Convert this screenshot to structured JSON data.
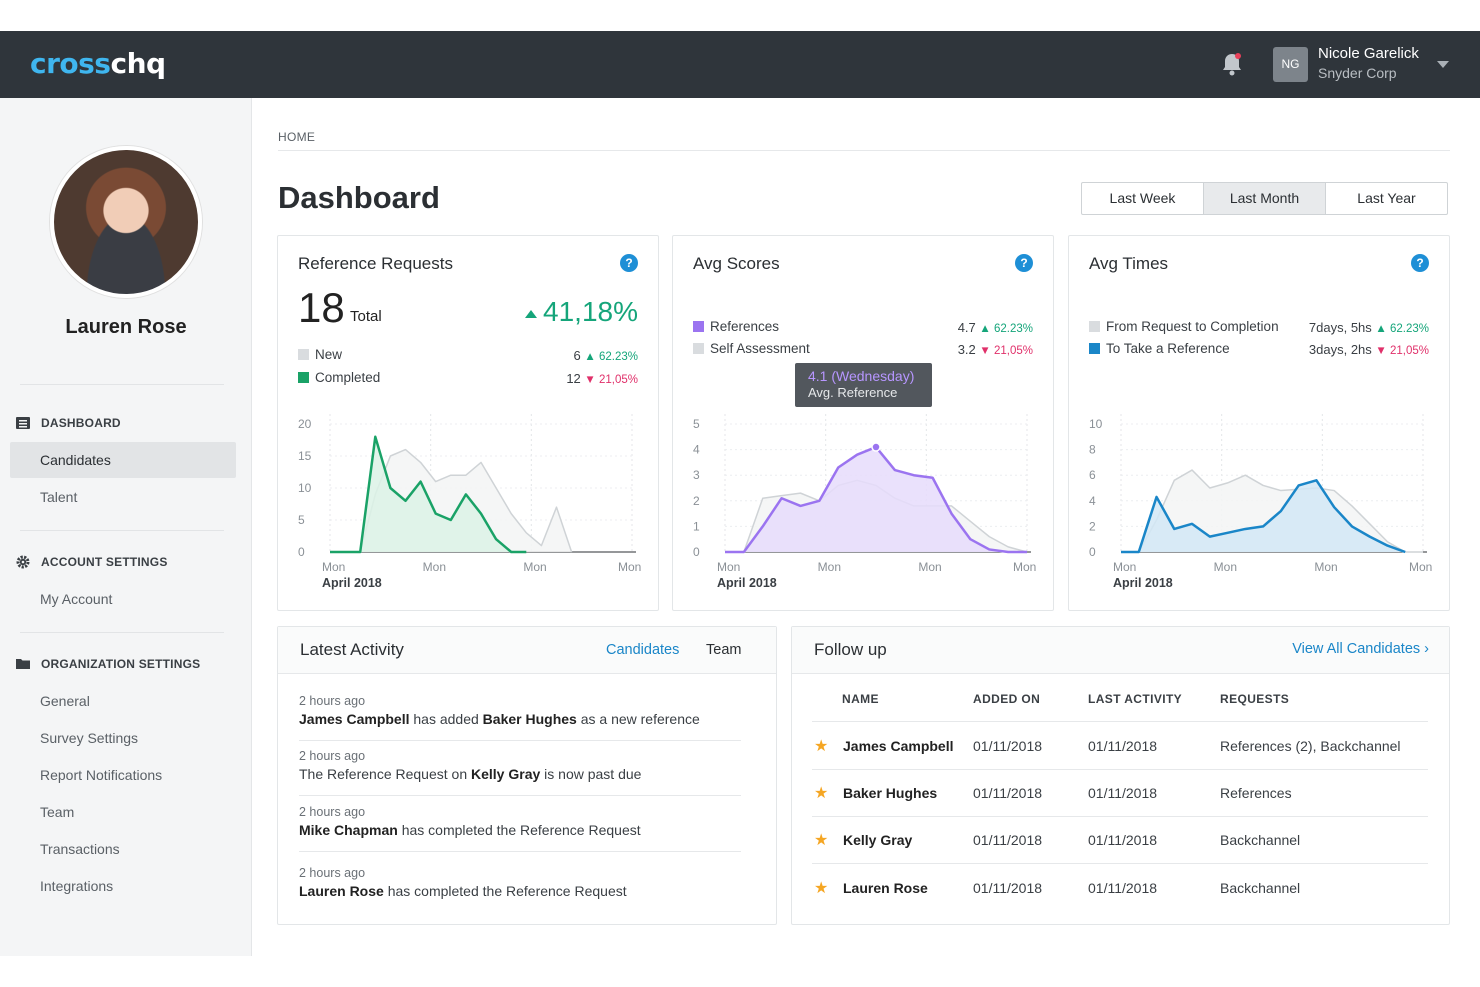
{
  "app": {
    "logo_part1": "cross",
    "logo_part2": "chq"
  },
  "user": {
    "initials": "NG",
    "name": "Nicole Garelick",
    "company": "Snyder Corp"
  },
  "profile": {
    "name": "Lauren Rose"
  },
  "sidebar": {
    "dashboard_header": "DASHBOARD",
    "dashboard_items": [
      "Candidates",
      "Talent"
    ],
    "account_header": "ACCOUNT SETTINGS",
    "account_items": [
      "My Account"
    ],
    "org_header": "ORGANIZATION SETTINGS",
    "org_items": [
      "General",
      "Survey Settings",
      "Report Notifications",
      "Team",
      "Transactions",
      "Integrations"
    ]
  },
  "breadcrumb": "HOME",
  "page_title": "Dashboard",
  "range": {
    "options": [
      "Last Week",
      "Last Month",
      "Last Year"
    ],
    "selected": "Last Month"
  },
  "cards": {
    "reference_requests": {
      "title": "Reference Requests",
      "total": "18",
      "total_label": "Total",
      "change": "41,18%",
      "legend": [
        {
          "label": "New",
          "value": "6",
          "delta": "62.23%",
          "dir": "up",
          "color": "#d9dcdf"
        },
        {
          "label": "Completed",
          "value": "12",
          "delta": "21,05%",
          "dir": "down",
          "color": "#1aa267"
        }
      ]
    },
    "avg_scores": {
      "title": "Avg Scores",
      "legend": [
        {
          "label": "References",
          "value": "4.7",
          "delta": "62.23%",
          "dir": "up",
          "color": "#9b74f0"
        },
        {
          "label": "Self Assessment",
          "value": "3.2",
          "delta": "21,05%",
          "dir": "down",
          "color": "#d9dcdf"
        }
      ],
      "tooltip": {
        "line1": "4.1 (Wednesday)",
        "line2": "Avg. Reference"
      }
    },
    "avg_times": {
      "title": "Avg Times",
      "legend": [
        {
          "label": "From Request to Completion",
          "value": "7days, 5hs",
          "delta": "62.23%",
          "dir": "up",
          "color": "#d9dcdf"
        },
        {
          "label": "To Take a Reference",
          "value": "3days, 2hs",
          "delta": "21,05%",
          "dir": "down",
          "color": "#1a86c8"
        }
      ]
    }
  },
  "chart_data": [
    {
      "type": "area",
      "ylim": [
        0,
        20
      ],
      "yticks": [
        0,
        5,
        10,
        15,
        20
      ],
      "xticks": [
        "Mon",
        "Mon",
        "Mon",
        "Mon"
      ],
      "xsub": "April 2018",
      "x": [
        0,
        1,
        2,
        3,
        4,
        5,
        6,
        7,
        8,
        9,
        10,
        11,
        12,
        13,
        14,
        15,
        16,
        17,
        18,
        19,
        20
      ],
      "series": [
        {
          "name": "New",
          "color": "#cfd3d6",
          "fill": "#f3f4f5",
          "values": [
            0,
            0,
            0,
            9,
            15,
            16,
            14,
            11,
            12,
            12,
            14,
            10,
            6,
            3,
            1,
            7,
            0,
            null,
            null,
            null,
            null
          ]
        },
        {
          "name": "Completed",
          "color": "#1aa267",
          "fill": "#dcf2e6",
          "values": [
            0,
            0,
            0,
            18,
            10,
            8,
            11,
            6,
            5,
            9,
            6,
            2,
            0,
            0,
            null,
            null,
            null,
            null,
            null,
            null,
            null
          ]
        }
      ]
    },
    {
      "type": "area",
      "ylim": [
        0,
        5
      ],
      "yticks": [
        0,
        1,
        2,
        3,
        4,
        5
      ],
      "xticks": [
        "Mon",
        "Mon",
        "Mon",
        "Mon"
      ],
      "xsub": "April 2018",
      "x": [
        0,
        1,
        2,
        3,
        4,
        5,
        6,
        7,
        8,
        9,
        10,
        11,
        12,
        13,
        14,
        15,
        16
      ],
      "series": [
        {
          "name": "Self Assessment",
          "color": "#cfd3d6",
          "fill": "#f3f4f5",
          "values": [
            0,
            0,
            2.1,
            2.2,
            2.3,
            2.0,
            2.6,
            2.8,
            2.6,
            2.1,
            1.8,
            1.8,
            1.8,
            1.2,
            0.6,
            0.2,
            0
          ]
        },
        {
          "name": "References",
          "color": "#9b74f0",
          "fill": "#e6dcfb",
          "values": [
            0,
            0,
            1.0,
            2.1,
            1.8,
            2.0,
            3.3,
            3.8,
            4.1,
            3.2,
            3.0,
            2.9,
            1.5,
            0.5,
            0.1,
            0,
            0
          ]
        }
      ],
      "highlight": {
        "series": "References",
        "index": 8,
        "value": 4.1
      }
    },
    {
      "type": "area",
      "ylim": [
        0,
        10
      ],
      "yticks": [
        0,
        2,
        4,
        6,
        8,
        10
      ],
      "xticks": [
        "Mon",
        "Mon",
        "Mon",
        "Mon"
      ],
      "xsub": "April 2018",
      "x": [
        0,
        1,
        2,
        3,
        4,
        5,
        6,
        7,
        8,
        9,
        10,
        11,
        12,
        13,
        14,
        15,
        16,
        17
      ],
      "series": [
        {
          "name": "From Request to Completion",
          "color": "#cfd3d6",
          "fill": "#f3f4f5",
          "values": [
            0,
            0,
            2.5,
            5.6,
            6.4,
            5.0,
            5.4,
            6.0,
            5.2,
            4.8,
            4.9,
            5.0,
            4.8,
            3.6,
            2.2,
            0.8,
            0,
            0
          ]
        },
        {
          "name": "To Take a Reference",
          "color": "#1a86c8",
          "fill": "#d2e7f6",
          "values": [
            0,
            0,
            4.3,
            1.8,
            2.2,
            1.2,
            1.5,
            1.8,
            2.0,
            3.2,
            5.2,
            5.6,
            3.5,
            2.0,
            1.2,
            0.5,
            0,
            null
          ]
        }
      ]
    }
  ],
  "activity": {
    "title": "Latest Activity",
    "tab_candidates": "Candidates",
    "tab_team": "Team",
    "items": [
      {
        "time": "2 hours ago",
        "actor": "James Campbell",
        "text": " has added ",
        "object": "Baker Hughes",
        "tail": " as a new reference"
      },
      {
        "time": "2 hours ago",
        "actor": "",
        "text": "The Reference Request on ",
        "object": "Kelly Gray",
        "tail": " is now past due"
      },
      {
        "time": "2 hours ago",
        "actor": "Mike Chapman",
        "text": " has completed the Reference Request",
        "object": "",
        "tail": ""
      },
      {
        "time": "2 hours ago",
        "actor": "Lauren Rose",
        "text": " has completed the Reference Request",
        "object": "",
        "tail": ""
      }
    ]
  },
  "followup": {
    "title": "Follow up",
    "view_all": "View All Candidates ›",
    "columns": [
      "NAME",
      "ADDED ON",
      "LAST ACTIVITY",
      "REQUESTS"
    ],
    "rows": [
      {
        "name": "James Campbell",
        "added": "01/11/2018",
        "last": "01/11/2018",
        "requests": "References (2), Backchannel"
      },
      {
        "name": "Baker Hughes",
        "added": "01/11/2018",
        "last": "01/11/2018",
        "requests": "References"
      },
      {
        "name": "Kelly Gray",
        "added": "01/11/2018",
        "last": "01/11/2018",
        "requests": "Backchannel"
      },
      {
        "name": "Lauren Rose",
        "added": "01/11/2018",
        "last": "01/11/2018",
        "requests": "Backchannel"
      }
    ]
  },
  "icons": {
    "bell": "bell-icon",
    "help": "help-icon",
    "star": "star-icon"
  }
}
